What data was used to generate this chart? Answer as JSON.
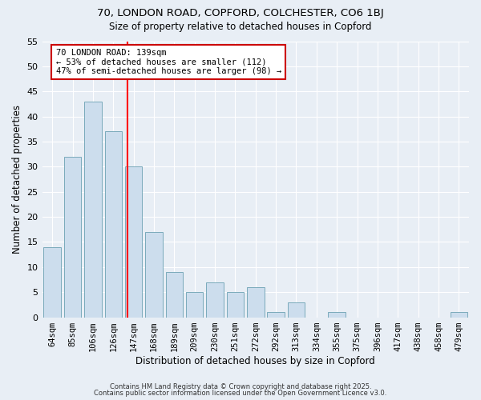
{
  "title1": "70, LONDON ROAD, COPFORD, COLCHESTER, CO6 1BJ",
  "title2": "Size of property relative to detached houses in Copford",
  "xlabel": "Distribution of detached houses by size in Copford",
  "ylabel": "Number of detached properties",
  "categories": [
    "64sqm",
    "85sqm",
    "106sqm",
    "126sqm",
    "147sqm",
    "168sqm",
    "189sqm",
    "209sqm",
    "230sqm",
    "251sqm",
    "272sqm",
    "292sqm",
    "313sqm",
    "334sqm",
    "355sqm",
    "375sqm",
    "396sqm",
    "417sqm",
    "438sqm",
    "458sqm",
    "479sqm"
  ],
  "values": [
    14,
    32,
    43,
    37,
    30,
    17,
    9,
    5,
    7,
    5,
    6,
    1,
    3,
    0,
    1,
    0,
    0,
    0,
    0,
    0,
    1
  ],
  "bar_color": "#ccdded",
  "bar_edge_color": "#7aaabb",
  "red_line_x": 3.7,
  "annotation_text": "70 LONDON ROAD: 139sqm\n← 53% of detached houses are smaller (112)\n47% of semi-detached houses are larger (98) →",
  "annotation_box_color": "#ffffff",
  "annotation_box_edge": "#cc0000",
  "footer1": "Contains HM Land Registry data © Crown copyright and database right 2025.",
  "footer2": "Contains public sector information licensed under the Open Government Licence v3.0.",
  "background_color": "#e8eef5",
  "grid_color": "#ffffff",
  "ylim": [
    0,
    55
  ],
  "yticks": [
    0,
    5,
    10,
    15,
    20,
    25,
    30,
    35,
    40,
    45,
    50,
    55
  ]
}
